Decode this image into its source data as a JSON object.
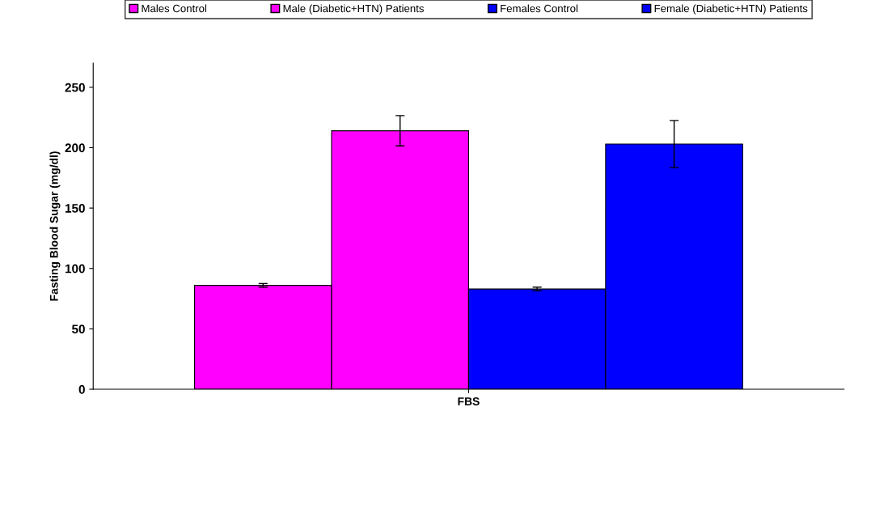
{
  "chart_data": {
    "type": "bar",
    "ylabel": "Fasting Blood Sugar (mg/dl)",
    "categories": [
      "FBS"
    ],
    "series": [
      {
        "name": "Males Control",
        "color": "#ff00ff",
        "values": [
          86
        ],
        "errors": [
          1.5
        ]
      },
      {
        "name": "Male (Diabetic+HTN) Patients",
        "color": "#ff00ff",
        "values": [
          214
        ],
        "errors": [
          12.5
        ]
      },
      {
        "name": "Females Control",
        "color": "#0000ff",
        "values": [
          83
        ],
        "errors": [
          1.5
        ]
      },
      {
        "name": "Female (Diabetic+HTN) Patients",
        "color": "#0000ff",
        "values": [
          203
        ],
        "errors": [
          19.5
        ]
      }
    ],
    "ylim": [
      0,
      270
    ],
    "yticks": [
      0,
      50,
      100,
      150,
      200,
      250
    ],
    "grid": false,
    "legend": "top"
  }
}
